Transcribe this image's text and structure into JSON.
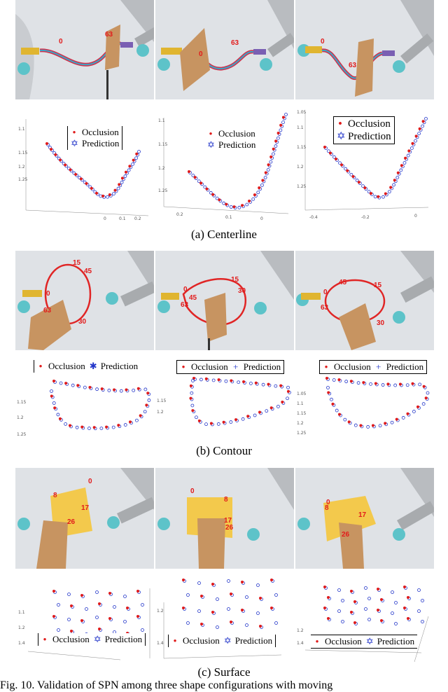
{
  "sections": [
    {
      "id": "centerline",
      "caption": "(a) Centerline",
      "photo_labels": [
        [
          "0",
          "63"
        ],
        [
          "0",
          "63"
        ],
        [
          "0",
          "63"
        ]
      ],
      "legend_border": [
        "left",
        "box",
        "box"
      ],
      "ticks": [
        [
          "1.1",
          "1.15",
          "1.2",
          "1.25",
          "0",
          "0.1",
          "0.2"
        ],
        [
          "1.1",
          "1.15",
          "1.2",
          "1.25",
          "0.2",
          "0.1",
          "0"
        ],
        [
          "1.05",
          "1.1",
          "1.15",
          "1.2",
          "1.25",
          "-0.4",
          "-0.2",
          "0"
        ]
      ]
    },
    {
      "id": "contour",
      "caption": "(b) Contour",
      "photo_labels": [
        [
          "15",
          "45",
          "0",
          "63",
          "30"
        ],
        [
          "0",
          "45",
          "15",
          "63",
          "30"
        ],
        [
          "45",
          "15",
          "0",
          "63",
          "30"
        ]
      ],
      "ticks": [
        [
          "1.15",
          "1.2",
          "1.25"
        ],
        [
          "1.15",
          "1.2"
        ],
        [
          "1.05",
          "1.1",
          "1.15",
          "1.2",
          "1.25"
        ]
      ]
    },
    {
      "id": "surface",
      "caption": "(c) Surface",
      "photo_labels": [
        [
          "0",
          "8",
          "17",
          "26"
        ],
        [
          "0",
          "8",
          "17",
          "26"
        ],
        [
          "0",
          "8",
          "17",
          "26"
        ]
      ],
      "ticks": [
        [
          "1.1",
          "1.2",
          "1.4"
        ],
        [
          "1.2",
          "1.4"
        ],
        [
          "1.2",
          "1.4"
        ]
      ]
    }
  ],
  "legend": {
    "occlusion": "Occlusion",
    "prediction": "Prediction"
  },
  "figure_caption": "Fig. 10.    Validation of SPN among three shape configurations with moving",
  "colors": {
    "occlusion": "#e01b1b",
    "prediction": "#2235c9",
    "curve_outer": "#d2304a",
    "curve_inner": "#3aa7c9",
    "cardboard": "#c79461",
    "surface": "#f3c94c"
  }
}
